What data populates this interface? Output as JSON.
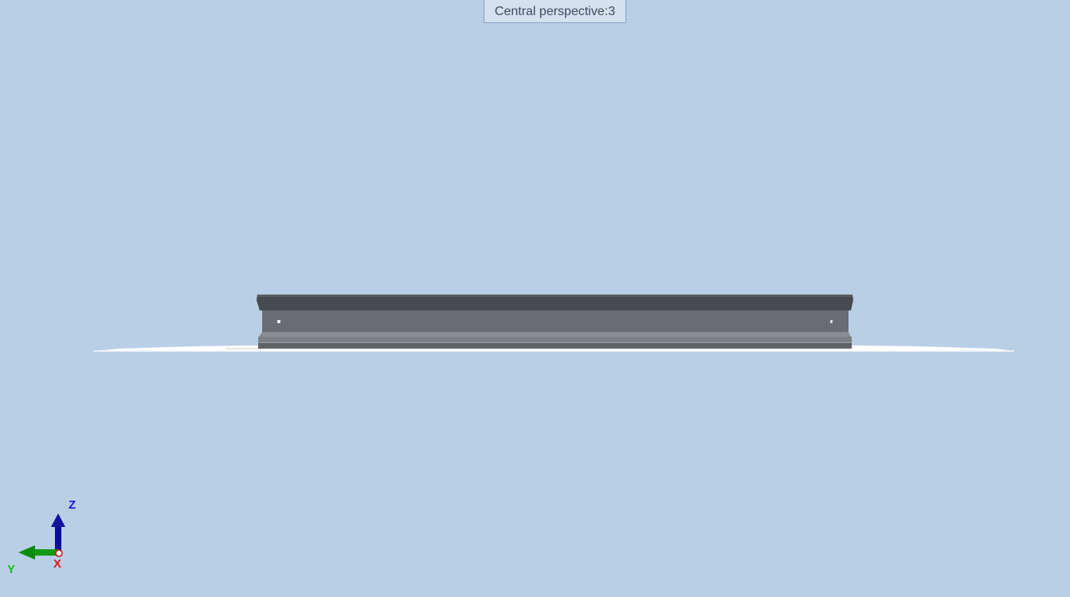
{
  "viewport": {
    "view_label": "Central perspective:3",
    "background_color": "#b9cfe6"
  },
  "model": {
    "part_color": "#6a6d70",
    "ground_color": "#ffffff"
  },
  "triad": {
    "z_label": "Z",
    "y_label": "Y",
    "x_label": "X",
    "z_color": "#1414d8",
    "y_color": "#18c018",
    "x_color": "#e01818"
  }
}
